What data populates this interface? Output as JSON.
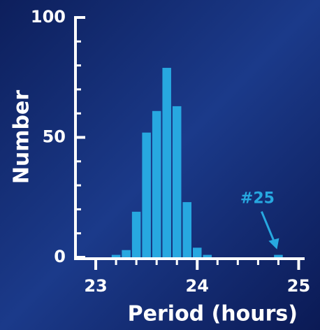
{
  "chart_data": {
    "type": "histogram",
    "xlabel": "Period (hours)",
    "ylabel": "Number",
    "bins": [
      23.15,
      23.25,
      23.35,
      23.45,
      23.55,
      23.65,
      23.75,
      23.85,
      23.95,
      24.05,
      24.15,
      24.25,
      24.35,
      24.45,
      24.55,
      24.65,
      24.75,
      24.85
    ],
    "values": [
      1,
      3,
      19,
      52,
      61,
      79,
      63,
      23,
      4,
      1,
      0,
      0,
      0,
      0,
      0,
      0,
      1
    ],
    "color": "#27a8e0",
    "xlim": [
      22.8,
      25.1
    ],
    "xticks": [
      23,
      24,
      25
    ],
    "xminorticks": [
      23.2,
      23.4,
      23.6,
      23.8,
      24.2,
      24.4,
      24.6,
      24.8
    ],
    "ylim": [
      0,
      100
    ],
    "yticks": [
      0,
      50,
      100
    ],
    "yminorticks": [
      10,
      20,
      30,
      40,
      60,
      70,
      80,
      90
    ],
    "annotation": {
      "text": "#25",
      "x": 24.8,
      "y": 1
    }
  }
}
